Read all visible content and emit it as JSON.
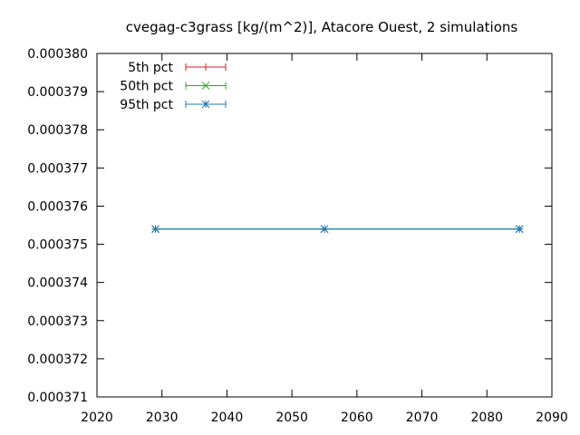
{
  "chart_data": {
    "type": "line",
    "title": "cvegag-c3grass [kg/(m^2)], Atacore Ouest, 2 simulations",
    "xlabel": "",
    "ylabel": "",
    "xlim": [
      2020,
      2090
    ],
    "ylim": [
      0.000371,
      0.00038
    ],
    "x_ticks": [
      "2020",
      "2030",
      "2040",
      "2050",
      "2060",
      "2070",
      "2080",
      "2090"
    ],
    "y_ticks": [
      "0.000371",
      "0.000372",
      "0.000373",
      "0.000374",
      "0.000375",
      "0.000376",
      "0.000377",
      "0.000378",
      "0.000379",
      "0.000380"
    ],
    "grid": false,
    "legend_position": "top-left",
    "x": [
      2029,
      2055,
      2085
    ],
    "series": [
      {
        "name": "5th pct",
        "color": "#e41a1c",
        "marker": "plus",
        "values": [
          0.0003754,
          0.0003754,
          0.0003754
        ]
      },
      {
        "name": "50th pct",
        "color": "#33a02c",
        "marker": "cross",
        "values": [
          0.0003754,
          0.0003754,
          0.0003754
        ]
      },
      {
        "name": "95th pct",
        "color": "#1f78b4",
        "marker": "star",
        "values": [
          0.0003754,
          0.0003754,
          0.0003754
        ]
      }
    ]
  }
}
